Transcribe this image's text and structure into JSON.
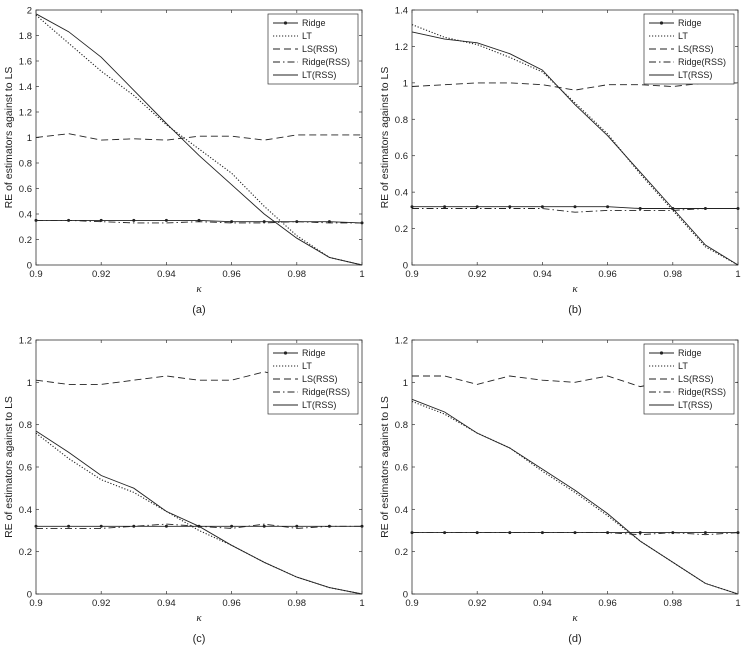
{
  "legend_labels": [
    "Ridge",
    "LT",
    "LS(RSS)",
    "Ridge(RSS)",
    "LT(RSS)"
  ],
  "chart_data": [
    {
      "type": "line",
      "caption": "(a)",
      "xlabel": "κ",
      "ylabel": "RE of estimators against to LS",
      "xlim": [
        0.9,
        1.0
      ],
      "ylim": [
        0,
        2
      ],
      "xticks": [
        "0.9",
        "0.92",
        "0.94",
        "0.96",
        "0.98",
        "1"
      ],
      "yticks": [
        "0",
        "0.2",
        "0.4",
        "0.6",
        "0.8",
        "1",
        "1.2",
        "1.4",
        "1.6",
        "1.8",
        "2"
      ],
      "legend_position": "top-right",
      "x": [
        0.9,
        0.91,
        0.92,
        0.93,
        0.94,
        0.95,
        0.96,
        0.97,
        0.98,
        0.99,
        1.0
      ],
      "series": [
        {
          "name": "Ridge",
          "style": "marker",
          "values": [
            0.35,
            0.35,
            0.35,
            0.35,
            0.35,
            0.35,
            0.34,
            0.34,
            0.34,
            0.34,
            0.33
          ]
        },
        {
          "name": "LT",
          "style": "dotted",
          "values": [
            1.96,
            1.74,
            1.52,
            1.33,
            1.1,
            0.91,
            0.72,
            0.46,
            0.23,
            0.06,
            0.0
          ]
        },
        {
          "name": "LS(RSS)",
          "style": "dashed",
          "values": [
            1.0,
            1.03,
            0.98,
            0.99,
            0.98,
            1.01,
            1.01,
            0.98,
            1.02,
            1.02,
            1.02
          ]
        },
        {
          "name": "Ridge(RSS)",
          "style": "dashdot",
          "values": [
            0.35,
            0.35,
            0.34,
            0.33,
            0.33,
            0.34,
            0.33,
            0.33,
            0.34,
            0.33,
            0.33
          ]
        },
        {
          "name": "LT(RSS)",
          "style": "solid",
          "values": [
            1.97,
            1.83,
            1.63,
            1.37,
            1.11,
            0.86,
            0.63,
            0.4,
            0.21,
            0.06,
            0.0
          ]
        }
      ]
    },
    {
      "type": "line",
      "caption": "(b)",
      "xlabel": "κ",
      "ylabel": "RE of estimators against to LS",
      "xlim": [
        0.9,
        1.0
      ],
      "ylim": [
        0,
        1.4
      ],
      "xticks": [
        "0.9",
        "0.92",
        "0.94",
        "0.96",
        "0.98",
        "1"
      ],
      "yticks": [
        "0",
        "0.2",
        "0.4",
        "0.6",
        "0.8",
        "1",
        "1.2",
        "1.4"
      ],
      "legend_position": "top-right",
      "x": [
        0.9,
        0.91,
        0.92,
        0.93,
        0.94,
        0.95,
        0.96,
        0.97,
        0.98,
        0.99,
        1.0
      ],
      "series": [
        {
          "name": "Ridge",
          "style": "marker",
          "values": [
            0.32,
            0.32,
            0.32,
            0.32,
            0.32,
            0.32,
            0.32,
            0.31,
            0.31,
            0.31,
            0.31
          ]
        },
        {
          "name": "LT",
          "style": "dotted",
          "values": [
            1.32,
            1.25,
            1.21,
            1.14,
            1.06,
            0.89,
            0.72,
            0.5,
            0.3,
            0.1,
            0.0
          ]
        },
        {
          "name": "LS(RSS)",
          "style": "dashed",
          "values": [
            0.98,
            0.99,
            1.0,
            1.0,
            0.99,
            0.96,
            0.99,
            0.99,
            0.98,
            1.0,
            1.0
          ]
        },
        {
          "name": "Ridge(RSS)",
          "style": "dashdot",
          "values": [
            0.31,
            0.31,
            0.31,
            0.31,
            0.31,
            0.29,
            0.3,
            0.3,
            0.3,
            0.31,
            0.31
          ]
        },
        {
          "name": "LT(RSS)",
          "style": "solid",
          "values": [
            1.28,
            1.24,
            1.22,
            1.16,
            1.07,
            0.88,
            0.71,
            0.51,
            0.31,
            0.11,
            0.0
          ]
        }
      ]
    },
    {
      "type": "line",
      "caption": "(c)",
      "xlabel": "κ",
      "ylabel": "RE of estimators against to LS",
      "xlim": [
        0.9,
        1.0
      ],
      "ylim": [
        0,
        1.2
      ],
      "xticks": [
        "0.9",
        "0.92",
        "0.94",
        "0.96",
        "0.98",
        "1"
      ],
      "yticks": [
        "0",
        "0.2",
        "0.4",
        "0.6",
        "0.8",
        "1",
        "1.2"
      ],
      "legend_position": "top-right",
      "x": [
        0.9,
        0.91,
        0.92,
        0.93,
        0.94,
        0.95,
        0.96,
        0.97,
        0.98,
        0.99,
        1.0
      ],
      "series": [
        {
          "name": "Ridge",
          "style": "marker",
          "values": [
            0.32,
            0.32,
            0.32,
            0.32,
            0.32,
            0.32,
            0.32,
            0.32,
            0.32,
            0.32,
            0.32
          ]
        },
        {
          "name": "LT",
          "style": "dotted",
          "values": [
            0.76,
            0.64,
            0.54,
            0.48,
            0.39,
            0.3,
            0.23,
            0.15,
            0.08,
            0.03,
            0.0
          ]
        },
        {
          "name": "LS(RSS)",
          "style": "dashed",
          "values": [
            1.01,
            0.99,
            0.99,
            1.01,
            1.03,
            1.01,
            1.01,
            1.05,
            1.01,
            1.02,
            1.0
          ]
        },
        {
          "name": "Ridge(RSS)",
          "style": "dashdot",
          "values": [
            0.31,
            0.31,
            0.31,
            0.32,
            0.33,
            0.32,
            0.31,
            0.33,
            0.31,
            0.32,
            0.32
          ]
        },
        {
          "name": "LT(RSS)",
          "style": "solid",
          "values": [
            0.77,
            0.67,
            0.56,
            0.5,
            0.39,
            0.32,
            0.23,
            0.15,
            0.08,
            0.03,
            0.0
          ]
        }
      ]
    },
    {
      "type": "line",
      "caption": "(d)",
      "xlabel": "κ",
      "ylabel": "RE of estimators against to LS",
      "xlim": [
        0.9,
        1.0
      ],
      "ylim": [
        0,
        1.2
      ],
      "xticks": [
        "0.9",
        "0.92",
        "0.94",
        "0.96",
        "0.98",
        "1"
      ],
      "yticks": [
        "0",
        "0.2",
        "0.4",
        "0.6",
        "0.8",
        "1",
        "1.2"
      ],
      "legend_position": "top-right",
      "x": [
        0.9,
        0.91,
        0.92,
        0.93,
        0.94,
        0.95,
        0.96,
        0.97,
        0.98,
        0.99,
        1.0
      ],
      "series": [
        {
          "name": "Ridge",
          "style": "marker",
          "values": [
            0.29,
            0.29,
            0.29,
            0.29,
            0.29,
            0.29,
            0.29,
            0.29,
            0.29,
            0.29,
            0.29
          ]
        },
        {
          "name": "LT",
          "style": "dotted",
          "values": [
            0.91,
            0.85,
            0.76,
            0.69,
            0.58,
            0.48,
            0.37,
            0.25,
            0.15,
            0.05,
            0.0
          ]
        },
        {
          "name": "LS(RSS)",
          "style": "dashed",
          "values": [
            1.03,
            1.03,
            0.99,
            1.03,
            1.01,
            1.0,
            1.03,
            0.98,
            1.01,
            1.0,
            1.0
          ]
        },
        {
          "name": "Ridge(RSS)",
          "style": "dashdot",
          "values": [
            0.29,
            0.29,
            0.29,
            0.29,
            0.29,
            0.29,
            0.29,
            0.28,
            0.29,
            0.28,
            0.29
          ]
        },
        {
          "name": "LT(RSS)",
          "style": "solid",
          "values": [
            0.92,
            0.86,
            0.76,
            0.69,
            0.59,
            0.49,
            0.38,
            0.25,
            0.15,
            0.05,
            0.0
          ]
        }
      ]
    }
  ]
}
